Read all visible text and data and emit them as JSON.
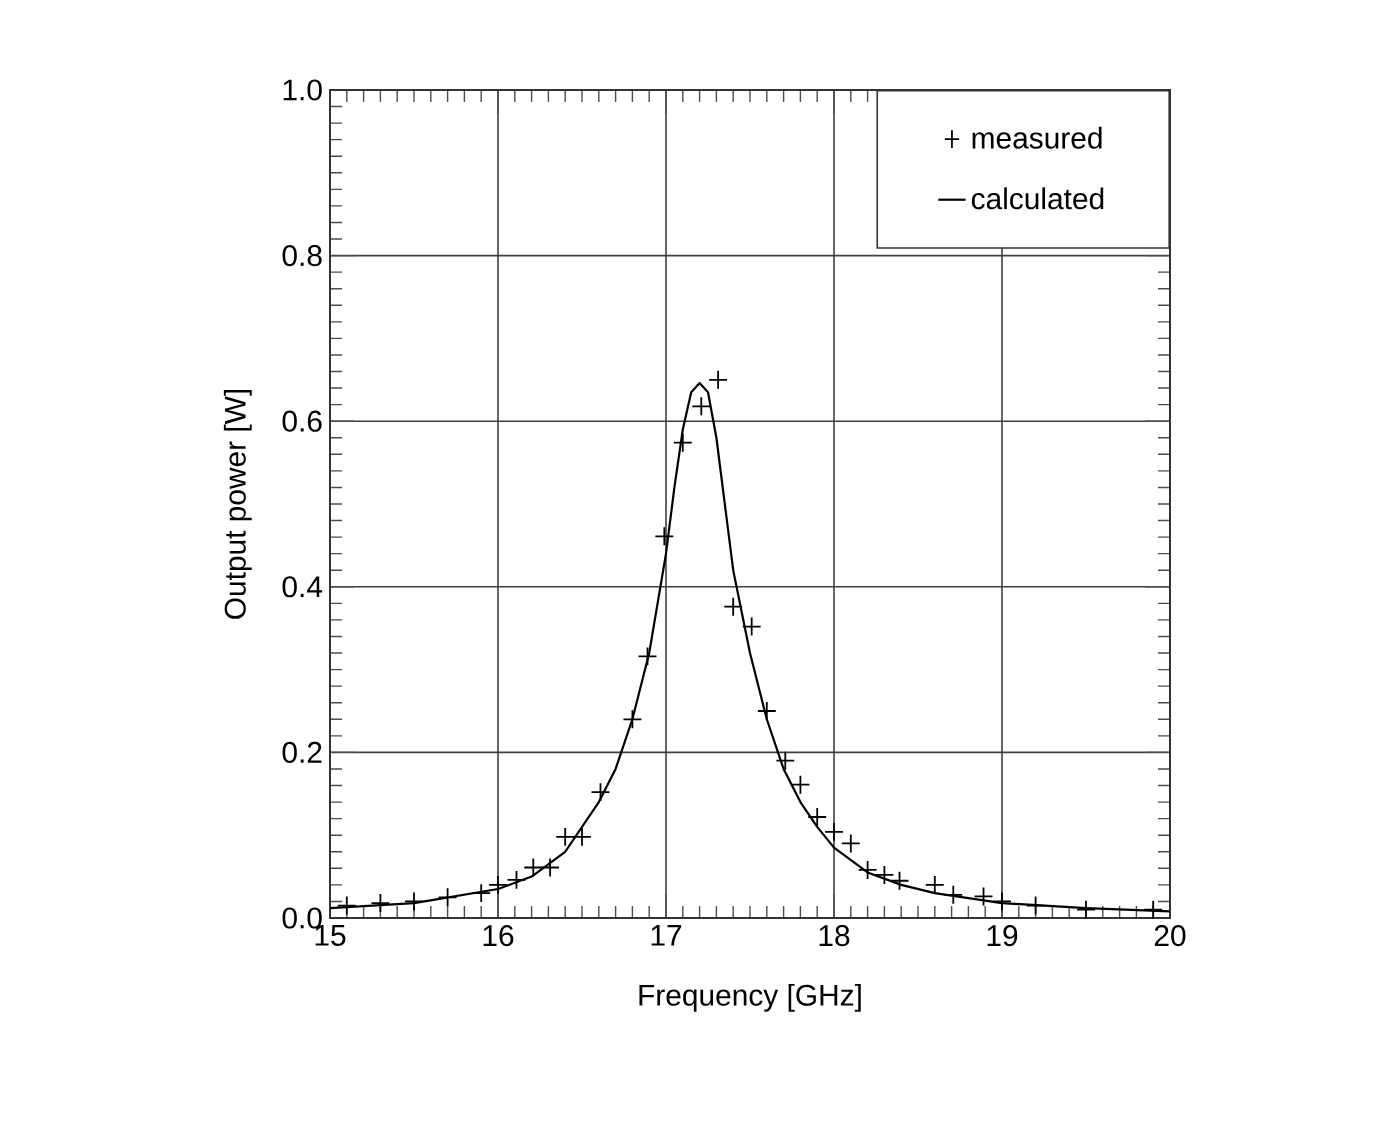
{
  "chart_data": {
    "type": "scatter",
    "xlabel": "Frequency [GHz]",
    "ylabel": "Output power [W]",
    "xlim": [
      15,
      20
    ],
    "ylim": [
      0,
      1
    ],
    "xticks": [
      15,
      16,
      17,
      18,
      19,
      20
    ],
    "yticks": [
      {
        "value": 0,
        "label": "0.0"
      },
      {
        "value": 0.2,
        "label": "0.2"
      },
      {
        "value": 0.4,
        "label": "0.4"
      },
      {
        "value": 0.6,
        "label": "0.6"
      },
      {
        "value": 0.8,
        "label": "0.8"
      },
      {
        "value": 1,
        "label": "1.0"
      }
    ],
    "grid": true,
    "legend": "top right",
    "series": [
      {
        "name": "measured",
        "marker": "cross",
        "color": "#000000",
        "x": [
          15.1,
          15.3,
          15.5,
          15.7,
          15.9,
          16.0,
          16.11,
          16.21,
          16.31,
          16.4,
          16.5,
          16.61,
          16.8,
          16.89,
          16.99,
          17.1,
          17.21,
          17.31,
          17.4,
          17.51,
          17.6,
          17.71,
          17.8,
          17.9,
          18.0,
          18.1,
          18.2,
          18.3,
          18.39,
          18.6,
          18.71,
          18.89,
          19.0,
          19.2,
          19.5,
          19.9
        ],
        "values": [
          0.015,
          0.018,
          0.02,
          0.025,
          0.03,
          0.04,
          0.046,
          0.061,
          0.061,
          0.098,
          0.098,
          0.152,
          0.24,
          0.316,
          0.461,
          0.574,
          0.618,
          0.65,
          0.376,
          0.352,
          0.25,
          0.19,
          0.161,
          0.122,
          0.104,
          0.09,
          0.058,
          0.052,
          0.045,
          0.04,
          0.028,
          0.026,
          0.02,
          0.015,
          0.01,
          0.01
        ]
      },
      {
        "name": "calculated",
        "type": "line",
        "marker": "none",
        "line_style": "solid",
        "color": "#000000",
        "x": [
          15.0,
          15.5,
          16.0,
          16.2,
          16.4,
          16.6,
          16.7,
          16.8,
          16.9,
          17.0,
          17.05,
          17.1,
          17.15,
          17.2,
          17.25,
          17.3,
          17.35,
          17.4,
          17.5,
          17.6,
          17.7,
          17.8,
          17.9,
          18.0,
          18.2,
          18.4,
          18.6,
          19.0,
          19.5,
          20.0
        ],
        "values": [
          0.012,
          0.018,
          0.035,
          0.05,
          0.08,
          0.14,
          0.18,
          0.24,
          0.32,
          0.44,
          0.52,
          0.59,
          0.635,
          0.646,
          0.635,
          0.58,
          0.5,
          0.42,
          0.32,
          0.24,
          0.18,
          0.14,
          0.11,
          0.085,
          0.055,
          0.04,
          0.03,
          0.018,
          0.012,
          0.008
        ]
      }
    ]
  }
}
